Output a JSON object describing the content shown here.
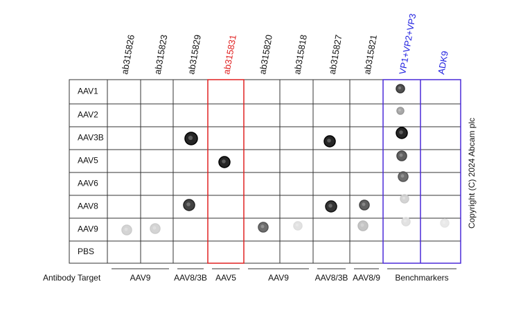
{
  "column_headers": [
    "ab315826",
    "ab315823",
    "ab315829",
    "ab315831",
    "ab315820",
    "ab315818",
    "ab315827",
    "ab315821",
    "VP1+VP2+VP3",
    "ADK9"
  ],
  "row_labels": [
    "AAV1",
    "AAV2",
    "AAV3B",
    "AAV5",
    "AAV6",
    "AAV8",
    "AAV9",
    "PBS"
  ],
  "axis_label": "Antibody Target",
  "target_groups": [
    "AAV9",
    "AAV8/3B",
    "AAV5",
    "AAV9",
    "AAV8/3B",
    "AAV8/9",
    "Benchmarkers"
  ],
  "copyright": "Copyright (C) 2024 Abcam plc"
}
